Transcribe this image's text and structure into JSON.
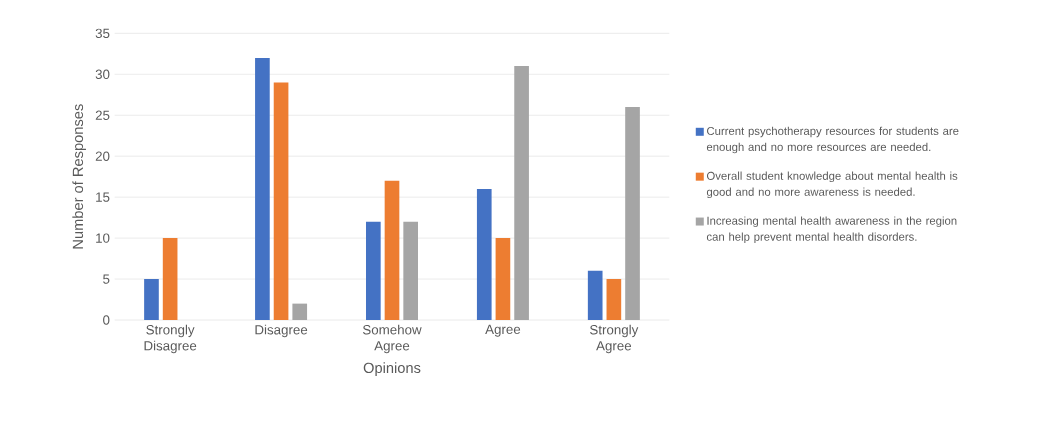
{
  "chart_data": {
    "type": "bar",
    "xlabel": "Opinions",
    "ylabel": "Number of Responses",
    "categories": [
      "Strongly Disagree",
      "Disagree",
      "Somehow Agree",
      "Agree",
      "Strongly Agree"
    ],
    "series": [
      {
        "name": "Current psychotherapy resources for students are enough and no more resources are needed.",
        "color": "#4472c4",
        "values": [
          5,
          32,
          12,
          16,
          6
        ]
      },
      {
        "name": "Overall student knowledge about mental health is good and no more awareness is needed.",
        "color": "#ed7d31",
        "values": [
          10,
          29,
          17,
          10,
          5
        ]
      },
      {
        "name": "Increasing mental health awareness in the region can help prevent mental health disorders.",
        "color": "#a5a5a5",
        "values": [
          0,
          2,
          12,
          31,
          26
        ]
      }
    ],
    "ylim": [
      0,
      35
    ],
    "yticks": [
      0,
      5,
      10,
      15,
      20,
      25,
      30,
      35
    ],
    "grid": "y",
    "legend": "right"
  }
}
